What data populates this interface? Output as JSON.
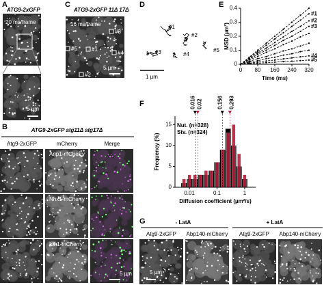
{
  "panels": {
    "A": {
      "label": "A",
      "title": "ATG9-2xGFP",
      "rate": "20 ms/frame",
      "scale": "5 µm"
    },
    "C": {
      "label": "C",
      "title": "ATG9-2xGFP 11Δ 17Δ",
      "rate": "16 ms/frame",
      "spots": [
        "#1",
        "#2",
        "#3",
        "#4",
        "#5"
      ],
      "scale": "5 µm"
    },
    "D": {
      "label": "D",
      "tracks": [
        "#1",
        "#2",
        "#3",
        "#4",
        "#5"
      ],
      "scale": "1 µm"
    },
    "E": {
      "label": "E",
      "chart": {
        "type": "line",
        "xlabel": "Time (ms)",
        "ylabel": "MSD (µm²)",
        "x": [
          0,
          40,
          80,
          120,
          160,
          200,
          240,
          280,
          320
        ],
        "xlim": [
          0,
          320
        ],
        "xticks": [
          0,
          80,
          160,
          240,
          320
        ],
        "ylim": [
          0,
          0.4
        ],
        "yticks": [
          0,
          0.1,
          0.2,
          0.3,
          0.4
        ],
        "series": [
          {
            "values": [
              0,
              0.05,
              0.1,
              0.15,
              0.2,
              0.25,
              0.3,
              0.35,
              0.4
            ]
          },
          {
            "name": "#1",
            "values": [
              0,
              0.045,
              0.09,
              0.135,
              0.18,
              0.225,
              0.27,
              0.315,
              0.36
            ]
          },
          {
            "name": "#2",
            "values": [
              0,
              0.04,
              0.08,
              0.115,
              0.155,
              0.195,
              0.235,
              0.27,
              0.31
            ]
          },
          {
            "name": "#3",
            "values": [
              0,
              0.035,
              0.07,
              0.1,
              0.135,
              0.17,
              0.2,
              0.235,
              0.27
            ]
          },
          {
            "values": [
              0,
              0.03,
              0.055,
              0.085,
              0.11,
              0.14,
              0.165,
              0.195,
              0.22
            ]
          },
          {
            "values": [
              0,
              0.02,
              0.04,
              0.055,
              0.075,
              0.095,
              0.11,
              0.13,
              0.15
            ]
          },
          {
            "values": [
              0,
              0.015,
              0.025,
              0.04,
              0.05,
              0.065,
              0.075,
              0.09,
              0.1
            ]
          },
          {
            "name": "#4",
            "values": [
              0,
              0.008,
              0.015,
              0.023,
              0.03,
              0.038,
              0.045,
              0.053,
              0.06
            ]
          },
          {
            "name": "#5",
            "values": [
              0,
              0.004,
              0.008,
              0.011,
              0.015,
              0.019,
              0.022,
              0.026,
              0.03
            ]
          }
        ]
      }
    },
    "F": {
      "label": "F",
      "chart": {
        "type": "histogram",
        "xlabel": "Diffusion coefficient (µm²/s)",
        "ylabel": "Frequency (%)",
        "log_x": true,
        "xlim": [
          0.003,
          2.5
        ],
        "xticks": [
          0.01,
          0.1,
          1
        ],
        "ylim": [
          0,
          17
        ],
        "yticks": [
          0,
          5,
          10,
          15
        ],
        "bins": [
          0.005,
          0.008,
          0.0126,
          0.02,
          0.0316,
          0.05,
          0.079,
          0.126,
          0.2,
          0.316,
          0.5,
          0.79,
          1.26
        ],
        "series": [
          {
            "name": "Nut. (n=328)",
            "color": "#000000",
            "values": [
              1,
              2,
              2,
              3,
              3,
              4,
              6,
              9,
              14,
              10,
              5,
              2
            ]
          },
          {
            "name": "Stv. (n=324)",
            "color": "#b3203c",
            "values": [
              2,
              3,
              3,
              3,
              4,
              4,
              6,
              9,
              13,
              15,
              8,
              3
            ]
          }
        ],
        "markers": [
          {
            "value": 0.016,
            "color": "#000000"
          },
          {
            "value": 0.02,
            "color": "#b3203c"
          },
          {
            "value": 0.156,
            "color": "#000000"
          },
          {
            "value": 0.293,
            "color": "#b3203c"
          }
        ]
      }
    },
    "B": {
      "label": "B",
      "title": "ATG9-2xGFP atg11Δ atg17Δ",
      "columns": [
        "Atg9-2xGFP",
        "mCherry",
        "Merge"
      ],
      "rows": [
        "Anp1-mCherry",
        "Nhx1-mCherry",
        "Idh1-mCherry"
      ],
      "scale": "5 µm"
    },
    "G": {
      "label": "G",
      "conditions": [
        "- LatA",
        "+ LatA"
      ],
      "columns": [
        "Atg9-2xGFP",
        "Abp140-mCherry",
        "Atg9-2xGFP",
        "Abp140-mCherry"
      ],
      "scale": "5 µm"
    }
  }
}
